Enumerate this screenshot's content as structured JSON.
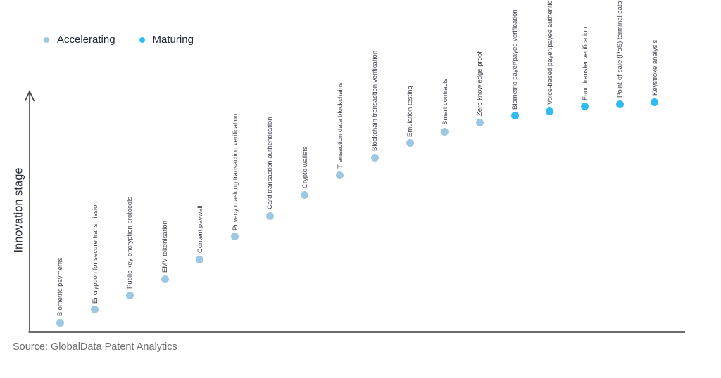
{
  "legend": {
    "items": [
      {
        "label": "Accelerating",
        "color": "#9dc8e2"
      },
      {
        "label": "Maturing",
        "color": "#2fbcf2"
      }
    ]
  },
  "y_axis_label": "Innovation stage",
  "source": "Source: GlobalData Patent Analytics",
  "colors": {
    "accelerating": "#9dc8e2",
    "maturing": "#2fbcf2",
    "y_axis_line": "#3f3f48",
    "x_axis_line": "#6d6d6d",
    "point_label_text": "#3d3f4d"
  },
  "chart_data": {
    "type": "scatter",
    "title": "",
    "xlabel": "",
    "ylabel": "Innovation stage",
    "grid": false,
    "legend_position": "top-left",
    "y_axis_ticks": "none (qualitative S-curve, values normalized 0-1)",
    "series": [
      "Accelerating",
      "Maturing"
    ],
    "points": [
      {
        "label": "Biometric payments",
        "stage": "Accelerating",
        "value": 0.038
      },
      {
        "label": "Encryption for secure transmission",
        "stage": "Accelerating",
        "value": 0.091
      },
      {
        "label": "Public key encryption protocols",
        "stage": "Accelerating",
        "value": 0.152
      },
      {
        "label": "EMV tokenisation",
        "stage": "Accelerating",
        "value": 0.219
      },
      {
        "label": "Content paywall",
        "stage": "Accelerating",
        "value": 0.301
      },
      {
        "label": "Privacy masking transaction verification",
        "stage": "Accelerating",
        "value": 0.395
      },
      {
        "label": "Card transaction authentication",
        "stage": "Accelerating",
        "value": 0.482
      },
      {
        "label": "Crypto wallets",
        "stage": "Accelerating",
        "value": 0.57
      },
      {
        "label": "Transaction data blockchains",
        "stage": "Accelerating",
        "value": 0.652
      },
      {
        "label": "Blockchain transaction verification",
        "stage": "Accelerating",
        "value": 0.725
      },
      {
        "label": "Emulation testing",
        "stage": "Accelerating",
        "value": 0.784
      },
      {
        "label": "Smart contracts",
        "stage": "Accelerating",
        "value": 0.833
      },
      {
        "label": "Zero knowledge proof",
        "stage": "Accelerating",
        "value": 0.871
      },
      {
        "label": "Biometric payer/payee verification",
        "stage": "Maturing",
        "value": 0.898
      },
      {
        "label": "Voice-based payer/payee authentication",
        "stage": "Maturing",
        "value": 0.918
      },
      {
        "label": "Fund transfer verification",
        "stage": "Maturing",
        "value": 0.936
      },
      {
        "label": "Point-of-sale (PoS) terminal data security",
        "stage": "Maturing",
        "value": 0.947
      },
      {
        "label": "Keystroke analysis",
        "stage": "Maturing",
        "value": 0.956
      }
    ]
  }
}
